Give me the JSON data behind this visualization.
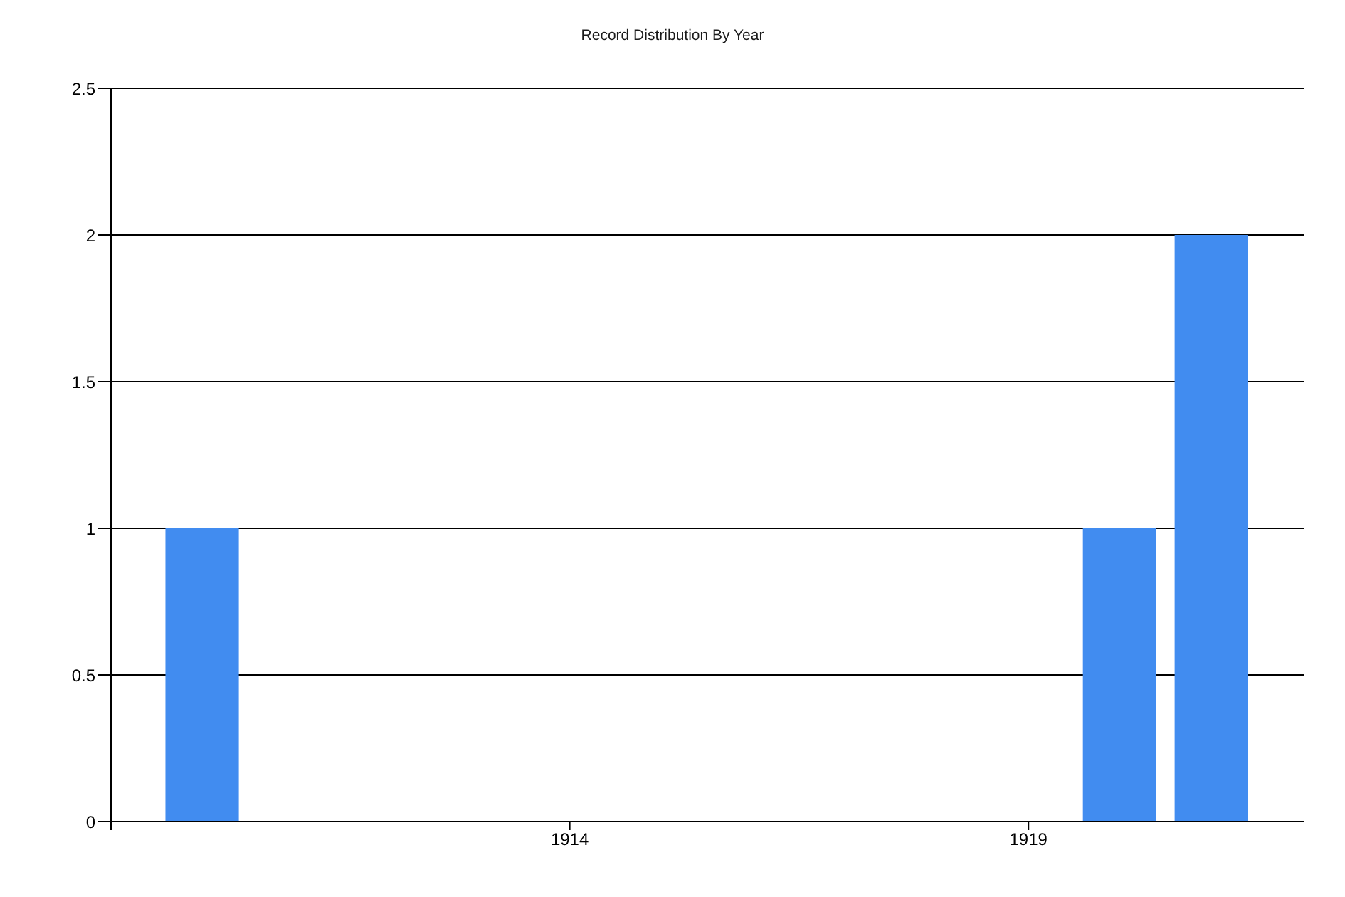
{
  "chart_data": {
    "type": "bar",
    "title": "Record Distribution By Year",
    "x": [
      1910,
      1920,
      1921
    ],
    "values": [
      1,
      1,
      2
    ],
    "color": "#418cf0",
    "xlim": [
      1909,
      1922
    ],
    "xticks": [
      {
        "value": 1909,
        "label": null
      },
      1914,
      1919
    ],
    "ylim": [
      0,
      2.5
    ],
    "yticks": [
      0,
      0.5,
      1,
      1.5,
      2,
      2.5
    ],
    "grid": "y"
  }
}
